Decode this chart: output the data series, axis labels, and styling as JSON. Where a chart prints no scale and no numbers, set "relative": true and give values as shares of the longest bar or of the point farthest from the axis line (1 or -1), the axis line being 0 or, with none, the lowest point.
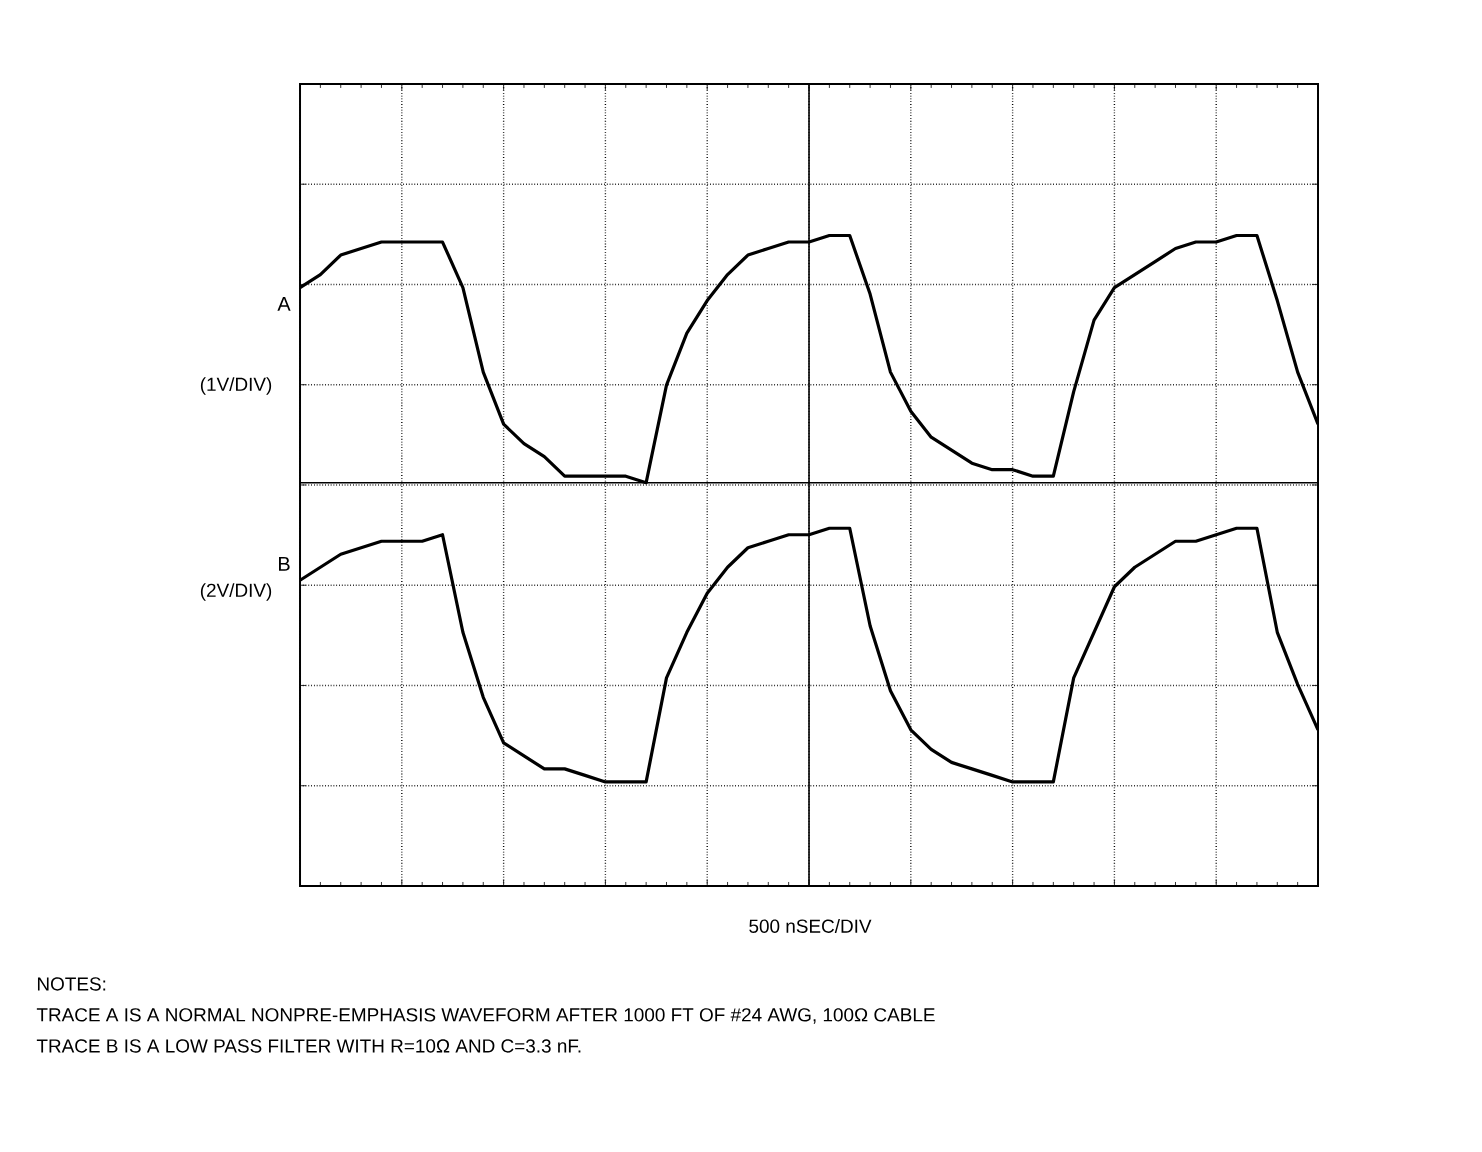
{
  "chart_data": {
    "type": "line",
    "relative": true,
    "grid": true,
    "tick_labels": false,
    "xlabel": "500 nSEC/DIV",
    "categories": [
      null,
      null,
      null,
      null,
      null,
      null,
      null,
      null,
      null,
      null,
      null,
      null,
      null,
      null,
      null,
      null,
      null,
      null,
      null,
      null,
      null,
      null,
      null,
      null,
      null,
      null,
      null,
      null,
      null,
      null,
      null,
      null,
      null,
      null,
      null,
      null,
      null,
      null,
      null,
      null,
      null,
      null,
      null,
      null,
      null,
      null,
      null,
      null,
      null,
      null,
      null
    ],
    "series": [
      {
        "name": "A",
        "color": "#000000",
        "values": [
          0.92,
          0.94,
          0.97,
          0.98,
          0.99,
          0.99,
          0.99,
          0.99,
          0.92,
          0.79,
          0.71,
          0.68,
          0.66,
          0.63,
          0.63,
          0.63,
          0.63,
          0.62,
          0.77,
          0.85,
          0.9,
          0.94,
          0.97,
          0.98,
          0.99,
          0.99,
          1.0,
          1.0,
          0.91,
          0.79,
          0.73,
          0.69,
          0.67,
          0.65,
          0.64,
          0.64,
          0.63,
          0.63,
          0.76,
          0.87,
          0.92,
          0.94,
          0.96,
          0.98,
          0.99,
          0.99,
          1.0,
          1.0,
          0.9,
          0.79,
          0.71
        ]
      },
      {
        "name": "B",
        "color": "#000000",
        "values": [
          0.47,
          0.49,
          0.51,
          0.52,
          0.53,
          0.53,
          0.53,
          0.54,
          0.39,
          0.29,
          0.22,
          0.2,
          0.18,
          0.18,
          0.17,
          0.16,
          0.16,
          0.16,
          0.32,
          0.39,
          0.45,
          0.49,
          0.52,
          0.53,
          0.54,
          0.54,
          0.55,
          0.55,
          0.4,
          0.3,
          0.24,
          0.21,
          0.19,
          0.18,
          0.17,
          0.16,
          0.16,
          0.16,
          0.32,
          0.39,
          0.46,
          0.49,
          0.51,
          0.53,
          0.53,
          0.54,
          0.55,
          0.55,
          0.39,
          0.31,
          0.24
        ]
      }
    ],
    "ref_lines": [
      {
        "axis": "y",
        "value": 0.62,
        "color": "#000000"
      }
    ],
    "annotations": [
      "(1V/DIV)",
      "(2V/DIV)",
      "NOTES:",
      "TRACE A IS A NORMAL NONPRE-EMPHASIS WAVEFORM AFTER 1000 FT OF #24 AWG, 100Ω CABLE",
      "TRACE B IS A LOW PASS FILTER WITH R=10Ω AND C=3.3 nF."
    ]
  }
}
